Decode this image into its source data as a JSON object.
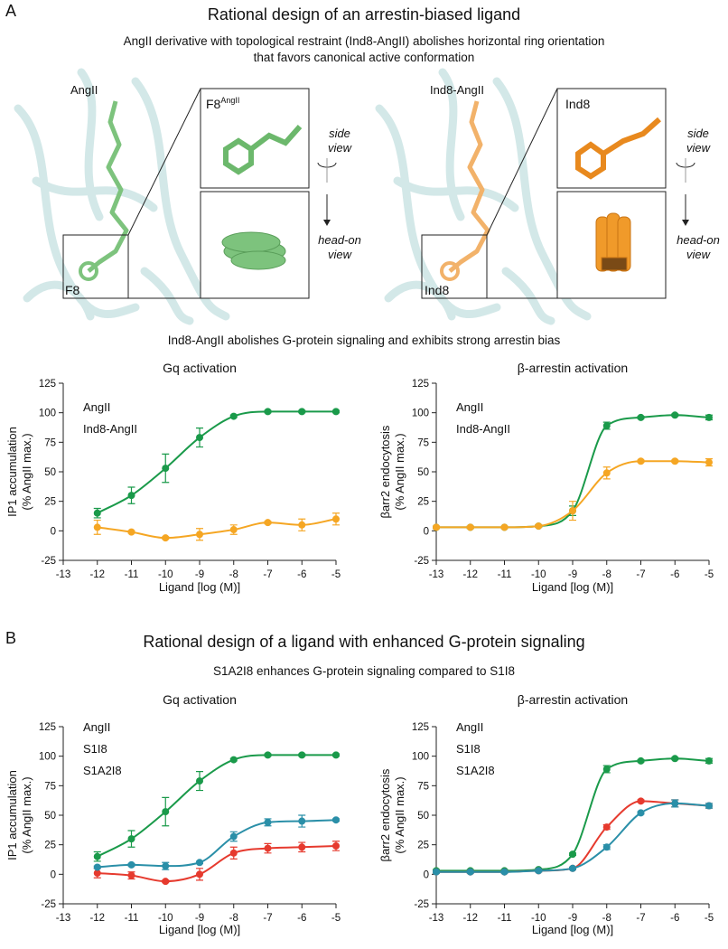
{
  "panel_a": {
    "letter": "A",
    "title": "Rational design of an arrestin-biased ligand",
    "subtitle": [
      "AngII derivative with topological restraint (Ind8-AngII) abolishes horizontal ring orientation",
      "that favors canonical active conformation"
    ],
    "images": [
      {
        "ligand": "AngII",
        "residue": "F8",
        "inset_label": "F8",
        "inset_sup": "AngII"
      },
      {
        "ligand": "Ind8-AngII",
        "residue": "Ind8",
        "inset_label": "Ind8"
      }
    ],
    "side_view": [
      "side",
      "view"
    ],
    "head_on_view": [
      "head-on",
      "view"
    ],
    "charts_heading": "Ind8-AngII abolishes G-protein signaling and exhibits strong arrestin bias"
  },
  "panel_b": {
    "letter": "B",
    "title": "Rational design of a ligand with enhanced G-protein signaling",
    "subtitle": "S1A2I8 enhances G-protein signaling compared to S1I8"
  },
  "chart_data": [
    {
      "type": "line",
      "title": "Gq activation",
      "xlabel": "Ligand [log (M)]",
      "ylabel": [
        "IP1 accumulation",
        "(% AngII max.)"
      ],
      "x": [
        -12,
        -11,
        -10,
        -9,
        -8,
        -7,
        -6,
        -5
      ],
      "xlim": [
        -13,
        -5
      ],
      "xticks": [
        -13,
        -12,
        -11,
        -10,
        -9,
        -8,
        -7,
        -6,
        -5
      ],
      "ylim": [
        -25,
        125
      ],
      "yticks": [
        -25,
        0,
        25,
        50,
        75,
        100,
        125
      ],
      "legend": "upper left",
      "series": [
        {
          "name": "AngII",
          "color": "#1a9a4a",
          "values": [
            15,
            30,
            53,
            79,
            97,
            101,
            101,
            101
          ],
          "errors": [
            4,
            7,
            12,
            8,
            1,
            1,
            1,
            1
          ]
        },
        {
          "name": "Ind8-AngII",
          "color": "#f5a623",
          "values": [
            3,
            -1,
            -6,
            -3,
            1,
            7,
            5,
            10
          ],
          "errors": [
            6,
            1,
            1,
            5,
            4,
            1,
            5,
            5
          ]
        }
      ]
    },
    {
      "type": "line",
      "title": "β-arrestin activation",
      "xlabel": "Ligand [log (M)]",
      "ylabel": [
        "βarr2 endocytosis",
        "(% AngII max.)"
      ],
      "x": [
        -13,
        -12,
        -11,
        -10,
        -9,
        -8,
        -7,
        -6,
        -5
      ],
      "xlim": [
        -13,
        -5
      ],
      "xticks": [
        -13,
        -12,
        -11,
        -10,
        -9,
        -8,
        -7,
        -6,
        -5
      ],
      "ylim": [
        -25,
        125
      ],
      "yticks": [
        -25,
        0,
        25,
        50,
        75,
        100,
        125
      ],
      "legend": "upper left",
      "series": [
        {
          "name": "AngII",
          "color": "#1a9a4a",
          "values": [
            3,
            3,
            3,
            4,
            17,
            89,
            96,
            98,
            96
          ],
          "errors": [
            1,
            1,
            1,
            1,
            4,
            3,
            1,
            1,
            2
          ]
        },
        {
          "name": "Ind8-AngII",
          "color": "#f5a623",
          "values": [
            3,
            3,
            3,
            4,
            17,
            49,
            59,
            59,
            58
          ],
          "errors": [
            1,
            1,
            1,
            1,
            8,
            5,
            1,
            1,
            3
          ]
        }
      ]
    },
    {
      "type": "line",
      "title": "Gq activation",
      "xlabel": "Ligand [log (M)]",
      "ylabel": [
        "IP1 accumulation",
        "(% AngII max.)"
      ],
      "x": [
        -12,
        -11,
        -10,
        -9,
        -8,
        -7,
        -6,
        -5
      ],
      "xlim": [
        -13,
        -5
      ],
      "xticks": [
        -13,
        -12,
        -11,
        -10,
        -9,
        -8,
        -7,
        -6,
        -5
      ],
      "ylim": [
        -25,
        125
      ],
      "yticks": [
        -25,
        0,
        25,
        50,
        75,
        100,
        125
      ],
      "legend": "upper left",
      "series": [
        {
          "name": "AngII",
          "color": "#1a9a4a",
          "values": [
            15,
            30,
            53,
            79,
            97,
            101,
            101,
            101
          ],
          "errors": [
            4,
            7,
            12,
            8,
            1,
            1,
            1,
            1
          ]
        },
        {
          "name": "S1I8",
          "color": "#e63a2e",
          "values": [
            1,
            -1,
            -6,
            0,
            18,
            22,
            23,
            24
          ],
          "errors": [
            4,
            3,
            1,
            5,
            5,
            4,
            4,
            4
          ]
        },
        {
          "name": "S1A2I8",
          "color": "#2a8fa8",
          "values": [
            6,
            8,
            7,
            10,
            32,
            44,
            45,
            46
          ],
          "errors": [
            1,
            1,
            3,
            1,
            4,
            3,
            5,
            1
          ]
        }
      ]
    },
    {
      "type": "line",
      "title": "β-arrestin activation",
      "xlabel": "Ligand [log (M)]",
      "ylabel": [
        "βarr2 endocytosis",
        "(% AngII max.)"
      ],
      "x": [
        -13,
        -12,
        -11,
        -10,
        -9,
        -8,
        -7,
        -6,
        -5
      ],
      "xlim": [
        -13,
        -5
      ],
      "xticks": [
        -13,
        -12,
        -11,
        -10,
        -9,
        -8,
        -7,
        -6,
        -5
      ],
      "ylim": [
        -25,
        125
      ],
      "yticks": [
        -25,
        0,
        25,
        50,
        75,
        100,
        125
      ],
      "legend": "upper left",
      "series": [
        {
          "name": "AngII",
          "color": "#1a9a4a",
          "values": [
            3,
            3,
            3,
            4,
            17,
            89,
            96,
            98,
            96
          ],
          "errors": [
            1,
            1,
            1,
            1,
            1,
            3,
            1,
            1,
            2
          ]
        },
        {
          "name": "S1I8",
          "color": "#e63a2e",
          "values": [
            2,
            2,
            2,
            3,
            5,
            40,
            62,
            60,
            58
          ],
          "errors": [
            1,
            1,
            1,
            1,
            1,
            2,
            1,
            3,
            2
          ]
        },
        {
          "name": "S1A2I8",
          "color": "#2a8fa8",
          "values": [
            2,
            2,
            2,
            3,
            5,
            23,
            52,
            60,
            58
          ],
          "errors": [
            1,
            1,
            1,
            1,
            1,
            2,
            1,
            3,
            2
          ]
        }
      ]
    }
  ]
}
